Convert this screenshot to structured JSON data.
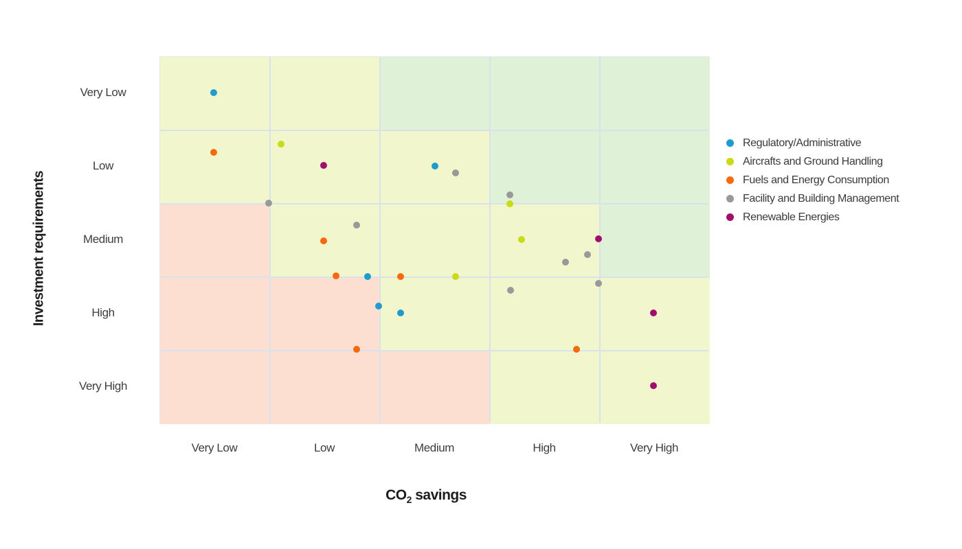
{
  "chart_data": {
    "type": "scatter",
    "subtype": "risk-matrix-scatter",
    "x_axis": {
      "title": "CO2 savings",
      "title_parts": {
        "prefix": "CO",
        "subscript": "2",
        "suffix": " savings"
      },
      "categories": [
        "Very Low",
        "Low",
        "Medium",
        "High",
        "Very High"
      ]
    },
    "y_axis": {
      "title": "Investment requirements",
      "categories": [
        "Very Low",
        "Low",
        "Medium",
        "High",
        "Very High"
      ]
    },
    "grid": true,
    "legend_position": "right",
    "marker_size": 10,
    "zone_colors": {
      "favorable": "#dff2d8",
      "moderate": "#f2f6cd",
      "unfavorable": "#fcdfd1"
    },
    "zones": [
      [
        "moderate",
        "moderate",
        "favorable",
        "favorable",
        "favorable"
      ],
      [
        "moderate",
        "moderate",
        "moderate",
        "favorable",
        "favorable"
      ],
      [
        "unfavorable",
        "moderate",
        "moderate",
        "moderate",
        "favorable"
      ],
      [
        "unfavorable",
        "unfavorable",
        "moderate",
        "moderate",
        "moderate"
      ],
      [
        "unfavorable",
        "unfavorable",
        "unfavorable",
        "moderate",
        "moderate"
      ]
    ],
    "point_space": "grid units: x 0-5 (Very Low to Very High), y 0-5 top-to-bottom (Very Low to Very High investment)",
    "series": [
      {
        "name": "Regulatory/Administrative",
        "color": "#1f9bcd",
        "points": [
          [
            0.49,
            0.49
          ],
          [
            2.5,
            1.49
          ],
          [
            1.89,
            2.99
          ],
          [
            1.99,
            3.39
          ],
          [
            2.19,
            3.49
          ]
        ]
      },
      {
        "name": "Aircrafts and Ground Handling",
        "color": "#c9db16",
        "points": [
          [
            1.1,
            1.19
          ],
          [
            3.18,
            2.0
          ],
          [
            3.29,
            2.49
          ],
          [
            2.69,
            2.99
          ]
        ]
      },
      {
        "name": "Fuels and Energy Consumption",
        "color": "#f8690d",
        "points": [
          [
            0.49,
            1.3
          ],
          [
            1.49,
            2.5
          ],
          [
            1.6,
            2.98
          ],
          [
            2.19,
            2.99
          ],
          [
            1.79,
            3.98
          ],
          [
            3.79,
            3.98
          ]
        ]
      },
      {
        "name": "Facility and Building Management",
        "color": "#999999",
        "points": [
          [
            2.69,
            1.58
          ],
          [
            3.18,
            1.88
          ],
          [
            0.99,
            1.99
          ],
          [
            1.79,
            2.29
          ],
          [
            3.89,
            2.69
          ],
          [
            3.69,
            2.79
          ],
          [
            3.99,
            3.08
          ],
          [
            3.19,
            3.18
          ]
        ]
      },
      {
        "name": "Renewable Energies",
        "color": "#a00f6e",
        "points": [
          [
            1.49,
            1.48
          ],
          [
            3.99,
            2.48
          ],
          [
            4.49,
            3.49
          ],
          [
            4.49,
            4.48
          ]
        ]
      }
    ]
  }
}
